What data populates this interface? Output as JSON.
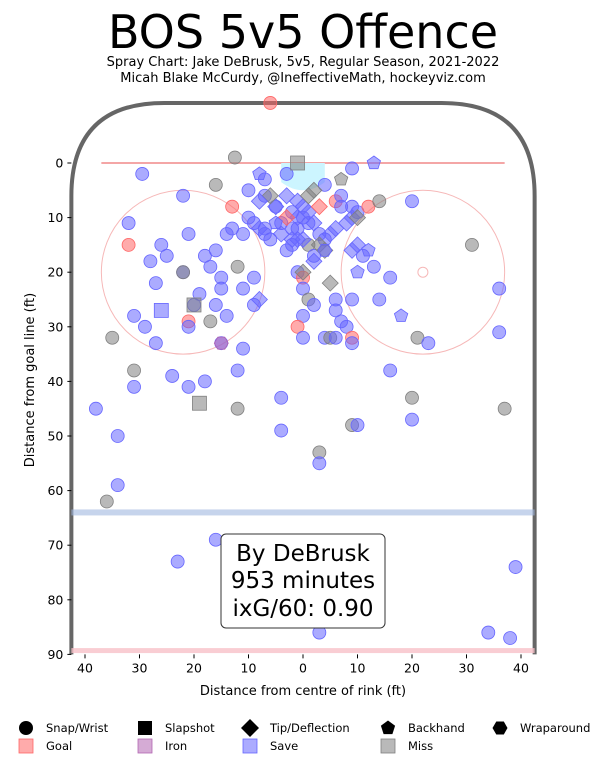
{
  "chart_data": {
    "type": "scatter",
    "title": "BOS 5v5 Offence",
    "subtitle_line1": "Spray Chart: Jake DeBrusk, 5v5, Regular Season, 2021-2022",
    "subtitle_line2": "Micah Blake McCurdy, @IneffectiveMath, hockeyviz.com",
    "xlabel": "Distance from centre of rink (ft)",
    "ylabel": "Distance from goal line (ft)",
    "x_ticks": [
      "40",
      "30",
      "20",
      "10",
      "0",
      "10",
      "20",
      "30",
      "40"
    ],
    "y_ticks": [
      "0",
      "10",
      "20",
      "30",
      "40",
      "50",
      "60",
      "70",
      "80",
      "90"
    ],
    "xlim": [
      -42.5,
      42.5
    ],
    "ylim": [
      -11,
      90
    ],
    "info_box": [
      "By DeBrusk",
      "953 minutes",
      "ixG/60: 0.90"
    ],
    "legend": {
      "shot_types": [
        "Snap/Wrist",
        "Slapshot",
        "Tip/Deflection",
        "Backhand",
        "Wraparound"
      ],
      "outcomes": [
        "Goal",
        "Iron",
        "Save",
        "Miss"
      ]
    },
    "colors": {
      "goal": "#ff6666",
      "iron": "#b266b2",
      "save": "#6666ff",
      "miss": "#808080",
      "rink_border": "#666666",
      "goal_line": "#f4a6a6",
      "blue_line": "#a0b8e0"
    },
    "shots": [
      {
        "x": -6.0,
        "y": -11,
        "t": "snap",
        "o": "goal"
      },
      {
        "x": -12.5,
        "y": -1,
        "t": "snap",
        "o": "miss"
      },
      {
        "x": -29.5,
        "y": 2,
        "t": "snap",
        "o": "save"
      },
      {
        "x": -16,
        "y": 4,
        "t": "snap",
        "o": "miss"
      },
      {
        "x": -13,
        "y": 8,
        "t": "snap",
        "o": "goal"
      },
      {
        "x": -7,
        "y": 6,
        "t": "snap",
        "o": "save"
      },
      {
        "x": -10,
        "y": 5,
        "t": "snap",
        "o": "save"
      },
      {
        "x": -10,
        "y": 10,
        "t": "snap",
        "o": "save"
      },
      {
        "x": -9,
        "y": 11,
        "t": "snap",
        "o": "save"
      },
      {
        "x": -4,
        "y": 11,
        "t": "snap",
        "o": "save"
      },
      {
        "x": -6,
        "y": 14,
        "t": "snap",
        "o": "save"
      },
      {
        "x": -7,
        "y": 12,
        "t": "snap",
        "o": "save"
      },
      {
        "x": -2,
        "y": 12,
        "t": "snap",
        "o": "save"
      },
      {
        "x": -11,
        "y": 13,
        "t": "snap",
        "o": "save"
      },
      {
        "x": -13,
        "y": 12,
        "t": "snap",
        "o": "save"
      },
      {
        "x": -14,
        "y": 13,
        "t": "snap",
        "o": "save"
      },
      {
        "x": -16,
        "y": 16,
        "t": "snap",
        "o": "save"
      },
      {
        "x": -21,
        "y": 13,
        "t": "snap",
        "o": "save"
      },
      {
        "x": -22,
        "y": 6,
        "t": "snap",
        "o": "save"
      },
      {
        "x": -26,
        "y": 15,
        "t": "snap",
        "o": "save"
      },
      {
        "x": -28,
        "y": 18,
        "t": "snap",
        "o": "save"
      },
      {
        "x": -32,
        "y": 11,
        "t": "snap",
        "o": "save"
      },
      {
        "x": -32,
        "y": 15,
        "t": "snap",
        "o": "goal"
      },
      {
        "x": -25,
        "y": 17,
        "t": "snap",
        "o": "save"
      },
      {
        "x": -22,
        "y": 20,
        "t": "snap",
        "o": "save"
      },
      {
        "x": -22,
        "y": 20,
        "t": "snap",
        "o": "miss"
      },
      {
        "x": -18,
        "y": 17,
        "t": "snap",
        "o": "save"
      },
      {
        "x": -17,
        "y": 19,
        "t": "snap",
        "o": "save"
      },
      {
        "x": -15,
        "y": 21,
        "t": "snap",
        "o": "save"
      },
      {
        "x": -15,
        "y": 23,
        "t": "snap",
        "o": "save"
      },
      {
        "x": -12,
        "y": 19,
        "t": "snap",
        "o": "miss"
      },
      {
        "x": -9,
        "y": 21,
        "t": "snap",
        "o": "save"
      },
      {
        "x": -11,
        "y": 23,
        "t": "snap",
        "o": "save"
      },
      {
        "x": -9,
        "y": 26,
        "t": "snap",
        "o": "save"
      },
      {
        "x": -16,
        "y": 26,
        "t": "snap",
        "o": "save"
      },
      {
        "x": -19,
        "y": 24,
        "t": "snap",
        "o": "save"
      },
      {
        "x": -20,
        "y": 26,
        "t": "snap",
        "o": "save"
      },
      {
        "x": -21,
        "y": 29,
        "t": "snap",
        "o": "goal"
      },
      {
        "x": -21,
        "y": 30,
        "t": "snap",
        "o": "save"
      },
      {
        "x": -17,
        "y": 29,
        "t": "snap",
        "o": "miss"
      },
      {
        "x": -14,
        "y": 28,
        "t": "snap",
        "o": "save"
      },
      {
        "x": -27,
        "y": 22,
        "t": "snap",
        "o": "save"
      },
      {
        "x": -31,
        "y": 28,
        "t": "snap",
        "o": "save"
      },
      {
        "x": -29,
        "y": 30,
        "t": "snap",
        "o": "save"
      },
      {
        "x": -27,
        "y": 33,
        "t": "snap",
        "o": "save"
      },
      {
        "x": -35,
        "y": 32,
        "t": "snap",
        "o": "miss"
      },
      {
        "x": -15,
        "y": 33,
        "t": "snap",
        "o": "save"
      },
      {
        "x": -11,
        "y": 34,
        "t": "snap",
        "o": "save"
      },
      {
        "x": -12,
        "y": 38,
        "t": "snap",
        "o": "save"
      },
      {
        "x": -24,
        "y": 39,
        "t": "snap",
        "o": "save"
      },
      {
        "x": -31,
        "y": 38,
        "t": "snap",
        "o": "miss"
      },
      {
        "x": -31,
        "y": 41,
        "t": "snap",
        "o": "save"
      },
      {
        "x": -21,
        "y": 41,
        "t": "snap",
        "o": "save"
      },
      {
        "x": -18,
        "y": 40,
        "t": "snap",
        "o": "save"
      },
      {
        "x": -38,
        "y": 45,
        "t": "snap",
        "o": "save"
      },
      {
        "x": -12,
        "y": 45,
        "t": "snap",
        "o": "miss"
      },
      {
        "x": -34,
        "y": 50,
        "t": "snap",
        "o": "save"
      },
      {
        "x": -34,
        "y": 59,
        "t": "snap",
        "o": "save"
      },
      {
        "x": -36,
        "y": 62,
        "t": "snap",
        "o": "miss"
      },
      {
        "x": -23,
        "y": 73,
        "t": "snap",
        "o": "save"
      },
      {
        "x": -16,
        "y": 69,
        "t": "snap",
        "o": "save"
      },
      {
        "x": -4,
        "y": 43,
        "t": "snap",
        "o": "save"
      },
      {
        "x": -4,
        "y": 49,
        "t": "snap",
        "o": "save"
      },
      {
        "x": -3,
        "y": 2,
        "t": "snap",
        "o": "save"
      },
      {
        "x": -7,
        "y": 3,
        "t": "snap",
        "o": "save"
      },
      {
        "x": -5,
        "y": 8,
        "t": "snap",
        "o": "save"
      },
      {
        "x": -3,
        "y": 16,
        "t": "snap",
        "o": "save"
      },
      {
        "x": -2,
        "y": 15,
        "t": "snap",
        "o": "save"
      },
      {
        "x": 1,
        "y": 15,
        "t": "snap",
        "o": "miss"
      },
      {
        "x": -1,
        "y": 20,
        "t": "snap",
        "o": "save"
      },
      {
        "x": 0,
        "y": 21,
        "t": "snap",
        "o": "goal"
      },
      {
        "x": 0,
        "y": 23,
        "t": "snap",
        "o": "save"
      },
      {
        "x": 1,
        "y": 25,
        "t": "snap",
        "o": "miss"
      },
      {
        "x": 2,
        "y": 26,
        "t": "snap",
        "o": "save"
      },
      {
        "x": 0,
        "y": 28,
        "t": "snap",
        "o": "save"
      },
      {
        "x": -1,
        "y": 30,
        "t": "snap",
        "o": "goal"
      },
      {
        "x": 0,
        "y": 32,
        "t": "snap",
        "o": "save"
      },
      {
        "x": 4,
        "y": 32,
        "t": "snap",
        "o": "save"
      },
      {
        "x": 5,
        "y": 32,
        "t": "snap",
        "o": "miss"
      },
      {
        "x": 6,
        "y": 32,
        "t": "snap",
        "o": "save"
      },
      {
        "x": 6,
        "y": 25,
        "t": "snap",
        "o": "save"
      },
      {
        "x": 6,
        "y": 27,
        "t": "snap",
        "o": "save"
      },
      {
        "x": 9,
        "y": 25,
        "t": "snap",
        "o": "save"
      },
      {
        "x": 7,
        "y": 29,
        "t": "snap",
        "o": "save"
      },
      {
        "x": 8,
        "y": 30,
        "t": "snap",
        "o": "save"
      },
      {
        "x": 9,
        "y": 32,
        "t": "snap",
        "o": "goal"
      },
      {
        "x": 9,
        "y": 33,
        "t": "snap",
        "o": "save"
      },
      {
        "x": 3,
        "y": 13,
        "t": "snap",
        "o": "save"
      },
      {
        "x": 4,
        "y": 14,
        "t": "snap",
        "o": "save"
      },
      {
        "x": 2,
        "y": 17,
        "t": "snap",
        "o": "save"
      },
      {
        "x": 4,
        "y": 4,
        "t": "snap",
        "o": "save"
      },
      {
        "x": 6,
        "y": 7,
        "t": "snap",
        "o": "goal"
      },
      {
        "x": 7,
        "y": 6,
        "t": "snap",
        "o": "save"
      },
      {
        "x": 7,
        "y": 8,
        "t": "snap",
        "o": "save"
      },
      {
        "x": 9,
        "y": 1,
        "t": "snap",
        "o": "save"
      },
      {
        "x": 9,
        "y": 8,
        "t": "snap",
        "o": "save"
      },
      {
        "x": 10,
        "y": 9,
        "t": "snap",
        "o": "save"
      },
      {
        "x": 12,
        "y": 8,
        "t": "snap",
        "o": "goal"
      },
      {
        "x": 14,
        "y": 7,
        "t": "snap",
        "o": "miss"
      },
      {
        "x": 13,
        "y": 19,
        "t": "snap",
        "o": "save"
      },
      {
        "x": 11,
        "y": 17,
        "t": "snap",
        "o": "save"
      },
      {
        "x": 16,
        "y": 21,
        "t": "snap",
        "o": "save"
      },
      {
        "x": 14,
        "y": 25,
        "t": "snap",
        "o": "save"
      },
      {
        "x": 16,
        "y": 38,
        "t": "snap",
        "o": "save"
      },
      {
        "x": 20,
        "y": 7,
        "t": "snap",
        "o": "save"
      },
      {
        "x": 21,
        "y": 32,
        "t": "snap",
        "o": "miss"
      },
      {
        "x": 23,
        "y": 33,
        "t": "snap",
        "o": "save"
      },
      {
        "x": 20,
        "y": 43,
        "t": "snap",
        "o": "miss"
      },
      {
        "x": 20,
        "y": 47,
        "t": "snap",
        "o": "save"
      },
      {
        "x": 31,
        "y": 15,
        "t": "snap",
        "o": "miss"
      },
      {
        "x": 36,
        "y": 23,
        "t": "snap",
        "o": "save"
      },
      {
        "x": 36,
        "y": 31,
        "t": "snap",
        "o": "save"
      },
      {
        "x": 37,
        "y": 45,
        "t": "snap",
        "o": "miss"
      },
      {
        "x": 9,
        "y": 48,
        "t": "snap",
        "o": "miss"
      },
      {
        "x": 10,
        "y": 48,
        "t": "snap",
        "o": "save"
      },
      {
        "x": 3,
        "y": 53,
        "t": "snap",
        "o": "miss"
      },
      {
        "x": 3,
        "y": 55,
        "t": "snap",
        "o": "save"
      },
      {
        "x": 3,
        "y": 86,
        "t": "snap",
        "o": "save"
      },
      {
        "x": 34,
        "y": 86,
        "t": "snap",
        "o": "save"
      },
      {
        "x": 38,
        "y": 87,
        "t": "snap",
        "o": "save"
      },
      {
        "x": 39,
        "y": 74,
        "t": "snap",
        "o": "save"
      },
      {
        "x": -2,
        "y": 9,
        "t": "snap",
        "o": "save"
      },
      {
        "x": 0,
        "y": 10,
        "t": "snap",
        "o": "save"
      },
      {
        "x": 1,
        "y": 11,
        "t": "snap",
        "o": "save"
      },
      {
        "x": -1,
        "y": 12,
        "t": "snap",
        "o": "save"
      },
      {
        "x": -7,
        "y": 13,
        "t": "snap",
        "o": "save"
      },
      {
        "x": -1,
        "y": 0,
        "t": "slap",
        "o": "miss"
      },
      {
        "x": -26,
        "y": 27,
        "t": "slap",
        "o": "save"
      },
      {
        "x": -20,
        "y": 26,
        "t": "slap",
        "o": "miss"
      },
      {
        "x": -19,
        "y": 44,
        "t": "slap",
        "o": "miss"
      },
      {
        "x": -1,
        "y": 7,
        "t": "tip",
        "o": "save"
      },
      {
        "x": 0,
        "y": 8,
        "t": "tip",
        "o": "save"
      },
      {
        "x": 1,
        "y": 9,
        "t": "tip",
        "o": "save"
      },
      {
        "x": -1,
        "y": 10,
        "t": "tip",
        "o": "save"
      },
      {
        "x": 2,
        "y": 11,
        "t": "tip",
        "o": "save"
      },
      {
        "x": -3,
        "y": 10,
        "t": "tip",
        "o": "goal"
      },
      {
        "x": 3,
        "y": 8,
        "t": "tip",
        "o": "goal"
      },
      {
        "x": 1,
        "y": 6,
        "t": "tip",
        "o": "miss"
      },
      {
        "x": -3,
        "y": 6,
        "t": "tip",
        "o": "save"
      },
      {
        "x": -5,
        "y": 8,
        "t": "tip",
        "o": "save"
      },
      {
        "x": -6,
        "y": 6,
        "t": "tip",
        "o": "miss"
      },
      {
        "x": -4,
        "y": 13,
        "t": "tip",
        "o": "save"
      },
      {
        "x": -2,
        "y": 14,
        "t": "tip",
        "o": "save"
      },
      {
        "x": 0,
        "y": 14,
        "t": "tip",
        "o": "save"
      },
      {
        "x": 3,
        "y": 15,
        "t": "tip",
        "o": "miss"
      },
      {
        "x": 4,
        "y": 16,
        "t": "tip",
        "o": "miss"
      },
      {
        "x": 5,
        "y": 13,
        "t": "tip",
        "o": "save"
      },
      {
        "x": 6,
        "y": 12,
        "t": "tip",
        "o": "save"
      },
      {
        "x": 8,
        "y": 11,
        "t": "tip",
        "o": "save"
      },
      {
        "x": 9,
        "y": 10,
        "t": "tip",
        "o": "save"
      },
      {
        "x": 10,
        "y": 10,
        "t": "tip",
        "o": "miss"
      },
      {
        "x": 10,
        "y": 15,
        "t": "tip",
        "o": "save"
      },
      {
        "x": 9,
        "y": 16,
        "t": "tip",
        "o": "save"
      },
      {
        "x": 5,
        "y": 22,
        "t": "tip",
        "o": "miss"
      },
      {
        "x": 2,
        "y": 18,
        "t": "tip",
        "o": "save"
      },
      {
        "x": 0,
        "y": 20,
        "t": "tip",
        "o": "miss"
      },
      {
        "x": -8,
        "y": 12,
        "t": "tip",
        "o": "save"
      },
      {
        "x": -8,
        "y": 25,
        "t": "tip",
        "o": "save"
      },
      {
        "x": -8,
        "y": 7,
        "t": "tip",
        "o": "save"
      },
      {
        "x": 2,
        "y": 5,
        "t": "tip",
        "o": "miss"
      },
      {
        "x": -1,
        "y": 14,
        "t": "tip",
        "o": "save"
      },
      {
        "x": 7,
        "y": 3,
        "t": "back",
        "o": "miss"
      },
      {
        "x": 13,
        "y": 0,
        "t": "back",
        "o": "save"
      },
      {
        "x": 18,
        "y": 28,
        "t": "back",
        "o": "save"
      },
      {
        "x": 10,
        "y": 20,
        "t": "back",
        "o": "save"
      },
      {
        "x": 12,
        "y": 16,
        "t": "back",
        "o": "save"
      },
      {
        "x": -8,
        "y": 2,
        "t": "back",
        "o": "save"
      },
      {
        "x": -5,
        "y": 11,
        "t": "back",
        "o": "save"
      },
      {
        "x": -15,
        "y": 33,
        "t": "wrap",
        "o": "iron"
      },
      {
        "x": 4,
        "y": 16,
        "t": "wrap",
        "o": "save"
      }
    ]
  }
}
